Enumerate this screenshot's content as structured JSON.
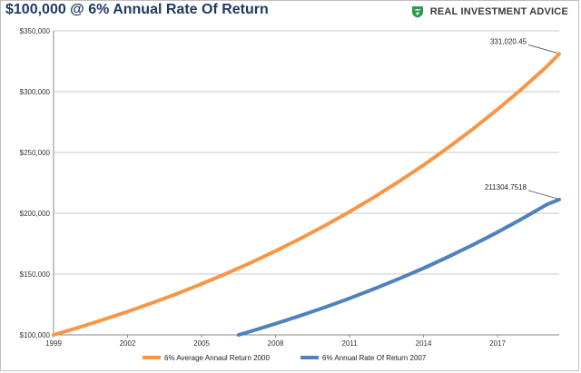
{
  "title": "$100,000 @ 6% Annual Rate Of Return",
  "brand": {
    "name": "REAL INVESTMENT ADVICE",
    "logo_icon": "eagle-shield-icon",
    "logo_color": "#2e9c4f"
  },
  "chart_data": {
    "type": "line",
    "title": "$100,000 @ 6% Annual Rate Of Return",
    "xlabel": "",
    "ylabel": "",
    "xlim": [
      1999,
      2019.5
    ],
    "ylim": [
      100000,
      350000
    ],
    "x_ticks": [
      "1999",
      "2002",
      "2005",
      "2008",
      "2011",
      "2014",
      "2017"
    ],
    "y_ticks": [
      "$100,000",
      "$150,000",
      "$200,000",
      "$250,000",
      "$300,000",
      "$350,000"
    ],
    "grid": true,
    "legend_position": "bottom",
    "series": [
      {
        "name": "6% Average Annaul Return 2000",
        "color": "#f79646",
        "x": [
          1999,
          2000,
          2001,
          2002,
          2003,
          2004,
          2005,
          2006,
          2007,
          2008,
          2009,
          2010,
          2011,
          2012,
          2013,
          2014,
          2015,
          2016,
          2017,
          2018,
          2019,
          2019.5
        ],
        "values": [
          100000,
          106000,
          112360,
          119102,
          126248,
          133823,
          141852,
          150363,
          159385,
          168948,
          179085,
          189830,
          201220,
          213293,
          226090,
          239656,
          254035,
          269277,
          285434,
          302560,
          320714,
          331020.45
        ]
      },
      {
        "name": "6% Annual Rate Of Return 2007",
        "color": "#4f81bd",
        "x": [
          2006.5,
          2007,
          2008,
          2009,
          2010,
          2011,
          2012,
          2013,
          2014,
          2015,
          2016,
          2017,
          2018,
          2019,
          2019.5
        ],
        "values": [
          100000,
          103000,
          109180,
          115731,
          122675,
          130035,
          137838,
          146108,
          154874,
          164167,
          174017,
          184458,
          195526,
          207257,
          211304.7518
        ]
      }
    ],
    "annotations": [
      {
        "text": "331,020.45",
        "series": 0
      },
      {
        "text": "211304.7518",
        "series": 1
      }
    ]
  }
}
